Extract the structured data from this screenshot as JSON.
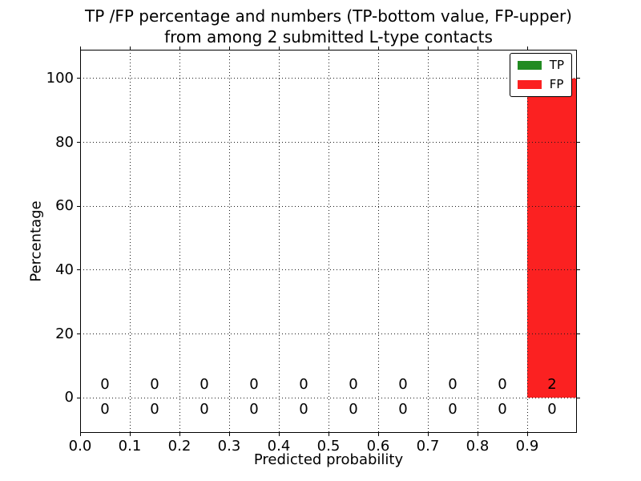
{
  "figure": {
    "title_line1": "TP /FP percentage and numbers (TP-bottom value, FP-upper)",
    "title_line2": "from among 2 submitted L-type contacts",
    "xlabel": "Predicted probability",
    "ylabel": "Percentage"
  },
  "legend": {
    "position": "upper right",
    "items": [
      {
        "label": "TP",
        "color": "#228B22"
      },
      {
        "label": "FP",
        "color": "#FB2121"
      }
    ]
  },
  "chart_data": {
    "type": "bar",
    "stacked": true,
    "title": "TP /FP percentage and numbers (TP-bottom value, FP-upper)\nfrom among 2 submitted L-type contacts",
    "xlabel": "Predicted probability",
    "ylabel": "Percentage",
    "xlim": [
      0.0,
      1.0
    ],
    "ylim": [
      -11,
      109
    ],
    "grid": true,
    "grid_style": "dotted",
    "legend_position": "upper right",
    "bin_width": 0.1,
    "bin_centers": [
      0.05,
      0.15,
      0.25,
      0.35,
      0.45,
      0.55,
      0.65,
      0.75,
      0.85,
      0.95
    ],
    "xtick_values": [
      0.0,
      0.1,
      0.2,
      0.3,
      0.4,
      0.5,
      0.6,
      0.7,
      0.8,
      0.9
    ],
    "xtick_labels": [
      "0.0",
      "0.1",
      "0.2",
      "0.3",
      "0.4",
      "0.5",
      "0.6",
      "0.7",
      "0.8",
      "0.9"
    ],
    "ytick_values": [
      0,
      20,
      40,
      60,
      80,
      100
    ],
    "ytick_labels": [
      "0",
      "20",
      "40",
      "60",
      "80",
      "100"
    ],
    "series": [
      {
        "name": "TP",
        "color": "#228B22",
        "count_label_row": "bottom",
        "percent": [
          0,
          0,
          0,
          0,
          0,
          0,
          0,
          0,
          0,
          0
        ],
        "counts": [
          0,
          0,
          0,
          0,
          0,
          0,
          0,
          0,
          0,
          0
        ]
      },
      {
        "name": "FP",
        "color": "#FB2121",
        "count_label_row": "top",
        "percent": [
          0,
          0,
          0,
          0,
          0,
          0,
          0,
          0,
          0,
          100
        ],
        "counts": [
          0,
          0,
          0,
          0,
          0,
          0,
          0,
          0,
          0,
          2
        ]
      }
    ]
  }
}
